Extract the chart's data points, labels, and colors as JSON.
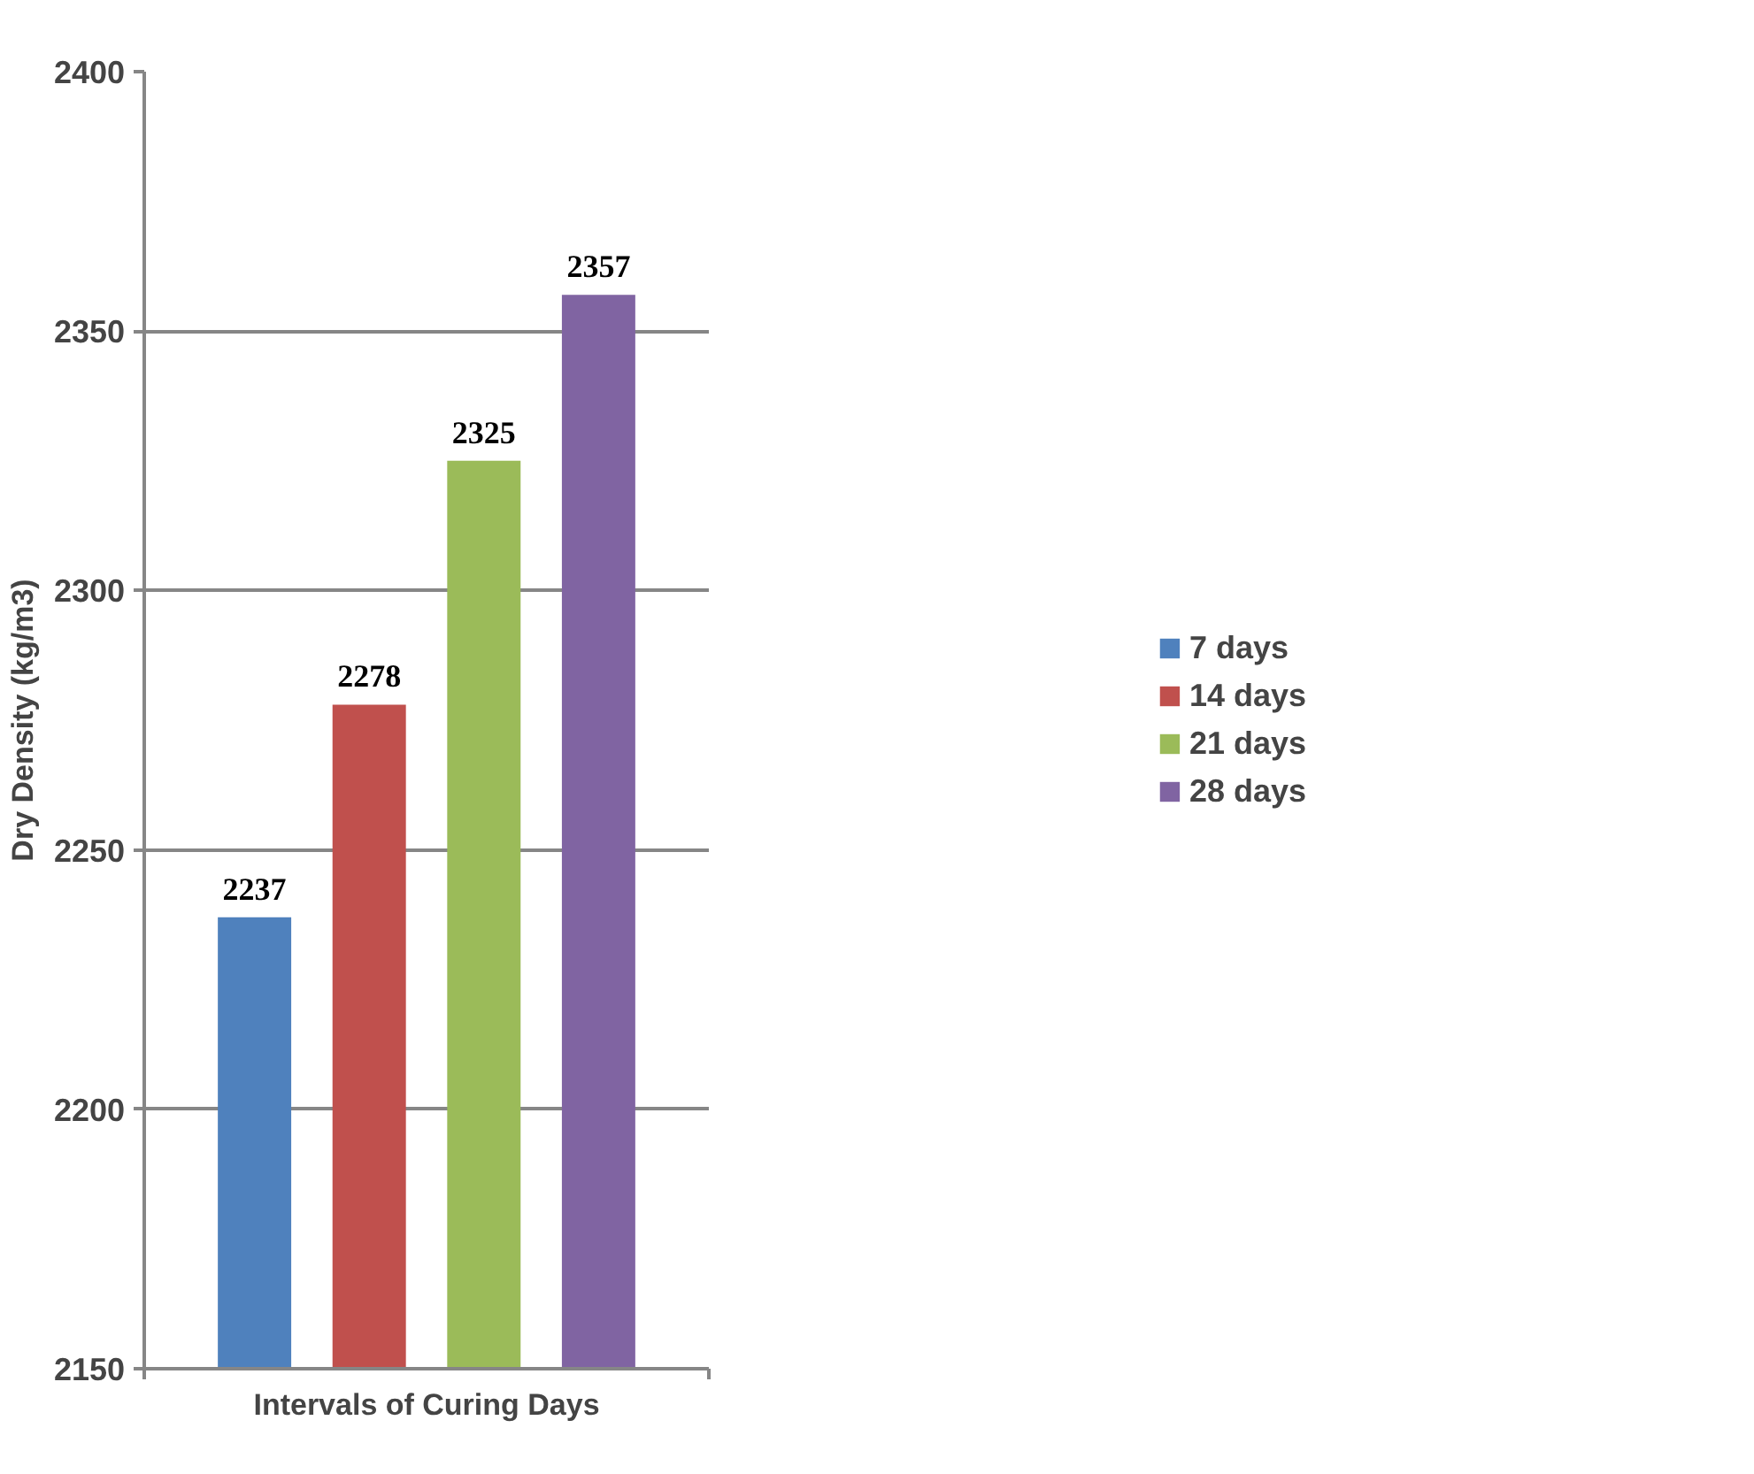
{
  "chart_data": {
    "type": "bar",
    "xlabel": "Intervals of Curing Days",
    "ylabel": "Dry Density (kg/m3)",
    "categories": [
      null
    ],
    "series": [
      {
        "name": "7 days",
        "color": "#4f81bd",
        "values": [
          2237
        ]
      },
      {
        "name": "14 days",
        "color": "#c0504d",
        "values": [
          2278
        ]
      },
      {
        "name": "21 days",
        "color": "#9bbb59",
        "values": [
          2325
        ]
      },
      {
        "name": "28 days",
        "color": "#8064a2",
        "values": [
          2357
        ]
      }
    ],
    "ylim": [
      2150,
      2400
    ],
    "yticks": [
      2150,
      2200,
      2250,
      2300,
      2350,
      2400
    ],
    "grid": "y",
    "legend": "right",
    "data_labels": true
  }
}
